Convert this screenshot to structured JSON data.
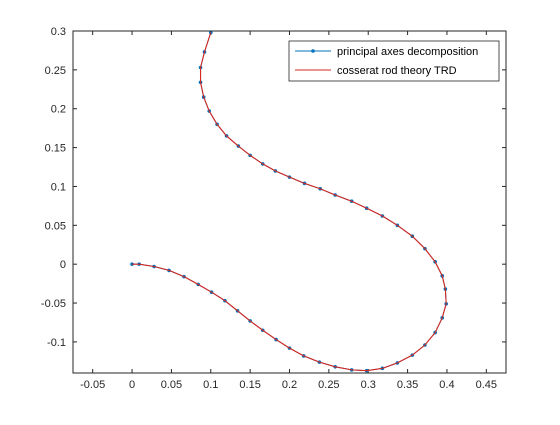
{
  "chart_data": {
    "type": "line",
    "title": "",
    "xlabel": "",
    "ylabel": "",
    "xlim": [
      -0.075,
      0.475
    ],
    "ylim": [
      -0.14,
      0.3
    ],
    "xticks": [
      -0.05,
      0,
      0.05,
      0.1,
      0.15,
      0.2,
      0.25,
      0.3,
      0.35,
      0.4,
      0.45
    ],
    "yticks": [
      -0.1,
      -0.05,
      0,
      0.05,
      0.1,
      0.15,
      0.2,
      0.25,
      0.3
    ],
    "xtick_labels": [
      "-0.05",
      "0",
      "0.05",
      "0.1",
      "0.15",
      "0.2",
      "0.25",
      "0.3",
      "0.35",
      "0.4",
      "0.45"
    ],
    "ytick_labels": [
      "-0.1",
      "-0.05",
      "0",
      "0.05",
      "0.1",
      "0.15",
      "0.2",
      "0.25",
      "0.3"
    ],
    "grid": false,
    "legend_position": "top-right",
    "series": [
      {
        "name": "principal axes decomposition",
        "color": "#0072BD",
        "marker": "dot",
        "x": [
          0.0,
          0.009,
          0.028,
          0.047,
          0.066,
          0.084,
          0.101,
          0.118,
          0.134,
          0.15,
          0.166,
          0.183,
          0.2,
          0.218,
          0.238,
          0.258,
          0.279,
          0.298,
          0.318,
          0.337,
          0.356,
          0.372,
          0.385,
          0.394,
          0.399,
          0.398,
          0.394,
          0.385,
          0.372,
          0.356,
          0.337,
          0.318,
          0.298,
          0.279,
          0.258,
          0.239,
          0.219,
          0.2,
          0.182,
          0.166,
          0.15,
          0.135,
          0.12,
          0.108,
          0.098,
          0.091,
          0.087,
          0.087,
          0.092,
          0.1
        ],
        "y": [
          0.0,
          0.0,
          -0.003,
          -0.008,
          -0.016,
          -0.026,
          -0.036,
          -0.047,
          -0.06,
          -0.073,
          -0.085,
          -0.097,
          -0.108,
          -0.118,
          -0.126,
          -0.132,
          -0.136,
          -0.137,
          -0.134,
          -0.127,
          -0.117,
          -0.104,
          -0.088,
          -0.069,
          -0.051,
          -0.032,
          -0.015,
          0.003,
          0.02,
          0.036,
          0.05,
          0.062,
          0.072,
          0.081,
          0.089,
          0.097,
          0.104,
          0.112,
          0.12,
          0.129,
          0.14,
          0.152,
          0.165,
          0.18,
          0.197,
          0.215,
          0.234,
          0.253,
          0.273,
          0.298
        ]
      },
      {
        "name": "cosserat rod theory TRD",
        "color": "#D95319",
        "marker": "none",
        "x": [
          0.0,
          0.009,
          0.028,
          0.047,
          0.066,
          0.084,
          0.101,
          0.118,
          0.134,
          0.15,
          0.166,
          0.183,
          0.2,
          0.218,
          0.238,
          0.258,
          0.279,
          0.298,
          0.318,
          0.337,
          0.356,
          0.372,
          0.385,
          0.394,
          0.399,
          0.398,
          0.394,
          0.385,
          0.372,
          0.356,
          0.337,
          0.318,
          0.298,
          0.279,
          0.258,
          0.239,
          0.219,
          0.2,
          0.182,
          0.166,
          0.15,
          0.135,
          0.12,
          0.108,
          0.098,
          0.091,
          0.087,
          0.087,
          0.092,
          0.1
        ],
        "y": [
          0.0,
          0.0,
          -0.003,
          -0.008,
          -0.016,
          -0.026,
          -0.036,
          -0.047,
          -0.06,
          -0.073,
          -0.085,
          -0.097,
          -0.108,
          -0.118,
          -0.126,
          -0.132,
          -0.136,
          -0.137,
          -0.134,
          -0.127,
          -0.117,
          -0.104,
          -0.088,
          -0.069,
          -0.051,
          -0.032,
          -0.015,
          0.003,
          0.02,
          0.036,
          0.05,
          0.062,
          0.072,
          0.081,
          0.089,
          0.097,
          0.104,
          0.112,
          0.12,
          0.129,
          0.14,
          0.152,
          0.165,
          0.18,
          0.197,
          0.215,
          0.234,
          0.253,
          0.273,
          0.298
        ]
      }
    ]
  }
}
